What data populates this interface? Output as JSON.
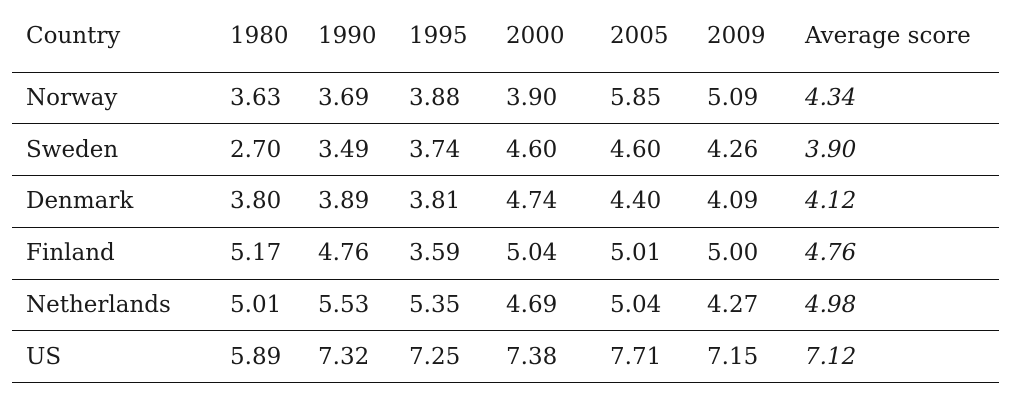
{
  "table": {
    "headers": [
      "Country",
      "1980",
      "1990",
      "1995",
      "2000",
      "2005",
      "2009",
      "Average score"
    ],
    "rows": [
      [
        "Norway",
        "3.63",
        "3.69",
        "3.88",
        "3.90",
        "5.85",
        "5.09",
        "4.34"
      ],
      [
        "Sweden",
        "2.70",
        "3.49",
        "3.74",
        "4.60",
        "4.60",
        "4.26",
        "3.90"
      ],
      [
        "Denmark",
        "3.80",
        "3.89",
        "3.81",
        "4.74",
        "4.40",
        "4.09",
        "4.12"
      ],
      [
        "Finland",
        "5.17",
        "4.76",
        "3.59",
        "5.04",
        "5.01",
        "5.00",
        "4.76"
      ],
      [
        "Netherlands",
        "5.01",
        "5.53",
        "5.35",
        "4.69",
        "5.04",
        "4.27",
        "4.98"
      ],
      [
        "US",
        "5.89",
        "7.32",
        "7.25",
        "7.38",
        "7.71",
        "7.15",
        "7.12"
      ]
    ]
  }
}
